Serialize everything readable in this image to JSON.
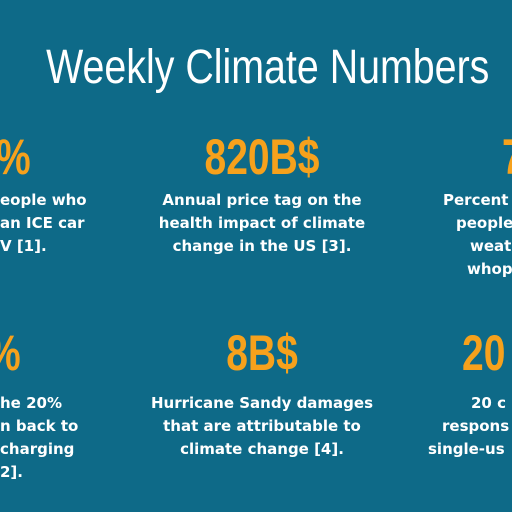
{
  "header": {
    "title": "Weekly Climate Numbers"
  },
  "cells": [
    {
      "figure": "%",
      "lines": [
        "eople who",
        "an ICE car",
        "V [1]."
      ]
    },
    {
      "figure": "820B$",
      "lines": [
        "Annual price tag on the",
        "health impact of climate",
        "change in the US [3]."
      ]
    },
    {
      "figure": "7",
      "lines": [
        "Percent",
        "people",
        "weat",
        "whop"
      ]
    },
    {
      "figure": "%",
      "lines": [
        "he 20%",
        "n back to",
        "charging",
        "2]."
      ]
    },
    {
      "figure": "8B$",
      "lines": [
        "Hurricane Sandy damages",
        "that are attributable to",
        "climate change [4]."
      ]
    },
    {
      "figure": "20",
      "lines": [
        "20 c",
        "respons",
        "single-us"
      ]
    }
  ]
}
